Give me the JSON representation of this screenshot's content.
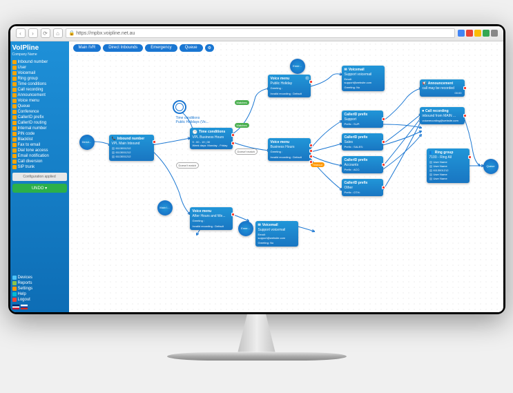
{
  "browser": {
    "url": "https://mpbx.voipline.net.au"
  },
  "sidebar": {
    "logo": "VoIPline",
    "company": "Company Name",
    "menu": [
      "Inbound number",
      "User",
      "Voicemail",
      "Ring group",
      "Time conditions",
      "Call recording",
      "Announcement",
      "Voice menu",
      "Queue",
      "Conference",
      "CallerID prefix",
      "CallerID routing",
      "Internal number",
      "PIN code",
      "Blacklist",
      "Fax to email",
      "Dial tone access",
      "Email notification",
      "Call diversion",
      "SIP trunk"
    ],
    "config_btn": "Configuration applied",
    "undo_btn": "UNDO ▾",
    "bottom": [
      "Devices",
      "Reports",
      "Settings",
      "Help",
      "Logout"
    ]
  },
  "tabs": [
    "Main IVR",
    "Direct Inbounds",
    "Emergency",
    "Queue"
  ],
  "nodes": {
    "inbound": {
      "title": "Inbound number",
      "sub": "VPL Main Inbound",
      "lines": [
        "6113001212",
        "6113001212",
        "6113001212"
      ]
    },
    "time1": {
      "title": "Time conditions",
      "sub": "Public Holidays (Vic..."
    },
    "time2": {
      "title": "Time conditions",
      "sub": "VPL Business Hours",
      "detail1": "9 : 00 - 19 | 30",
      "detail2": "Week days: Monday - Friday"
    },
    "vm1": {
      "title": "Voice menu",
      "sub": "Public Holiday",
      "g": "Greeting :",
      "r": "Invalid recording : Default"
    },
    "vm2": {
      "title": "Voice menu",
      "sub": "Business Hours",
      "g": "Greeting :",
      "r": "Invalid recording : Default"
    },
    "vm3": {
      "title": "Voice menu",
      "sub": "After Hours and We...",
      "g": "Greeting :",
      "r": "Invalid recording : Default"
    },
    "vmail1": {
      "title": "Voicemail",
      "sub": "Support voicemail",
      "e": "Email:",
      "e2": "support@website.com",
      "g": "Greeting: No"
    },
    "vmail2": {
      "title": "Voicemail",
      "sub": "Support voicemail",
      "e": "Email:",
      "e2": "support@website.com",
      "g": "Greeting: No"
    },
    "cid1": {
      "title": "CallerID prefix",
      "sub": "Support",
      "p": "Prefix         : SUP:"
    },
    "cid2": {
      "title": "CallerID prefix",
      "sub": "Sales",
      "p": "Prefix         : SALES:"
    },
    "cid3": {
      "title": "CallerID prefix",
      "sub": "Accounts",
      "p": "Prefix         : ACC:"
    },
    "cid4": {
      "title": "CallerID prefix",
      "sub": "Other",
      "p": "Prefix         : OTH:"
    },
    "ann": {
      "title": "Announcement",
      "sub": "call may be recorded"
    },
    "rec": {
      "title": "Call recording",
      "sub": "inbound from MAIN ...",
      "e": "voicerecording@website.com"
    },
    "ring": {
      "title": "Ring group",
      "sub": "7100 - Ring All",
      "lines": [
        "User Name",
        "User Name",
        "6113001212",
        "User Name",
        "User Name"
      ]
    }
  },
  "circles": {
    "direct": "Direct...",
    "main": "Main I...",
    "emer1": "Emer...",
    "emer2": "Emer...",
    "queue": "Queue"
  },
  "badges": {
    "matches": "Matches",
    "nomatch": "Doesn't match",
    "timeout": "Timeout"
  },
  "colors": {
    "primary": "#1976d2",
    "node_grad1": "#2196d8",
    "node_grad2": "#1976c2"
  }
}
